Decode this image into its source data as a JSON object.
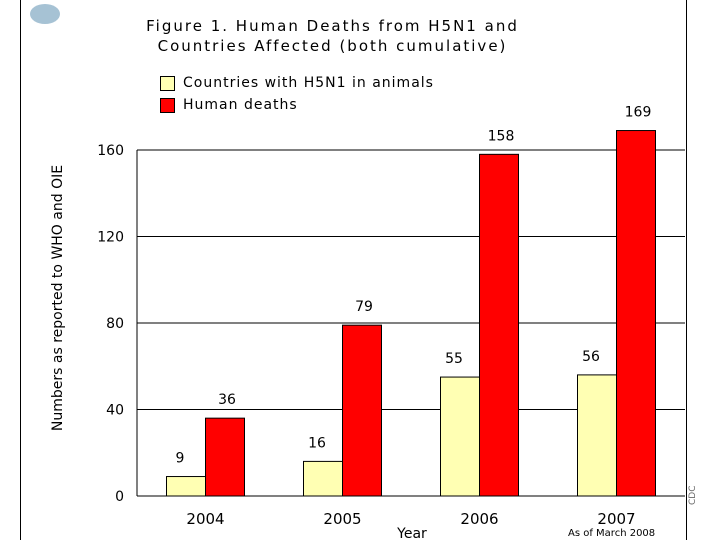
{
  "chart_data": {
    "type": "bar",
    "title_line1": "Figure 1. Human Deaths from H5N1 and",
    "title_line2": "Countries Affected (both cumulative)",
    "xlabel": "Year",
    "ylabel": "Numbers as reported to WHO and OIE",
    "categories": [
      "2004",
      "2005",
      "2006",
      "2007"
    ],
    "series": [
      {
        "name": "Countries with H5N1 in animals",
        "values": [
          9,
          16,
          55,
          56
        ],
        "color": "#ffffb3"
      },
      {
        "name": "Human deaths",
        "values": [
          36,
          79,
          158,
          169
        ],
        "color": "#ff0000"
      }
    ],
    "ylim": [
      0,
      180
    ],
    "yticks": [
      0,
      40,
      80,
      120,
      160
    ],
    "grid": true,
    "legend_position": "top-left",
    "footnote": "As of March 2008"
  },
  "side_text": "CDC",
  "colors": {
    "grid": "#000000",
    "background": "#ffffff"
  }
}
